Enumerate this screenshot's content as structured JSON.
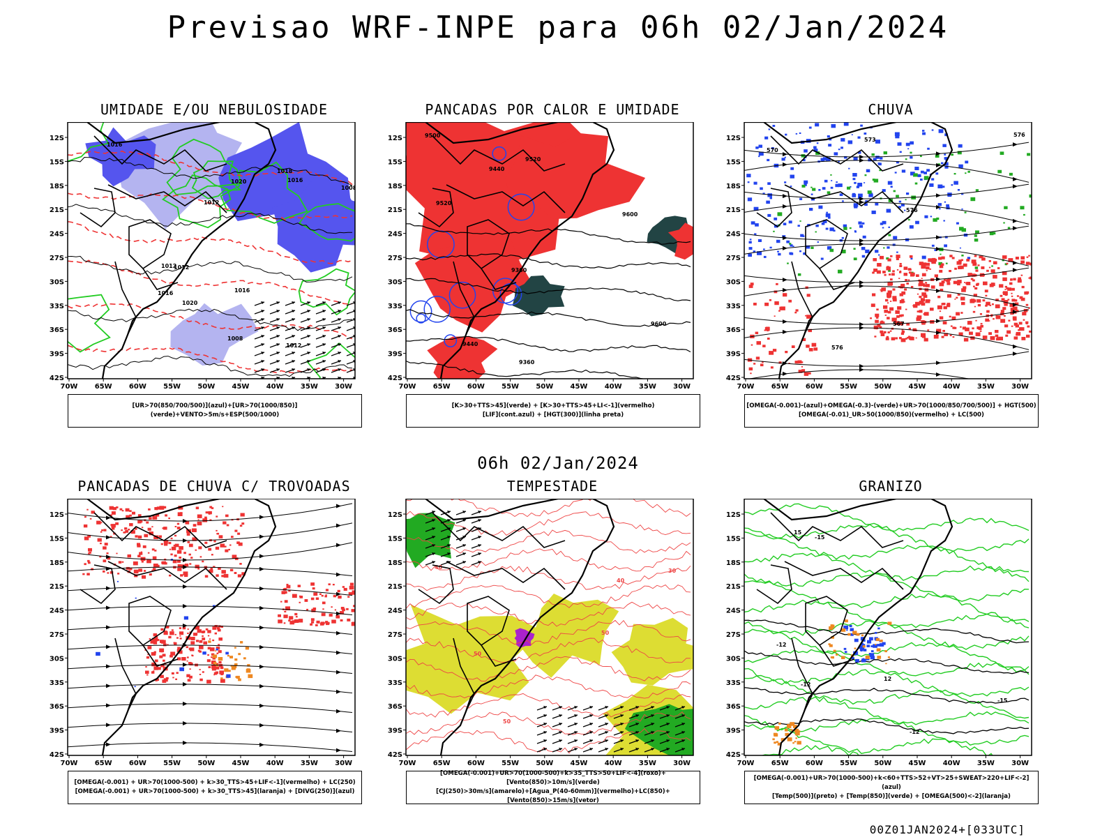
{
  "main_title": "Previsao WRF-INPE  para 06h 02/Jan/2024",
  "mid_title": "06h 02/Jan/2024",
  "footer": "00Z01JAN2024+[033UTC]",
  "lat_ticks": [
    "12S",
    "15S",
    "18S",
    "21S",
    "24S",
    "27S",
    "30S",
    "33S",
    "36S",
    "39S",
    "42S"
  ],
  "lon_ticks": [
    "70W",
    "65W",
    "60W",
    "55W",
    "50W",
    "45W",
    "40W",
    "35W",
    "30W"
  ],
  "panels": [
    {
      "title": "UMIDADE E/OU NEBULOSIDADE",
      "legend": [
        "[UR>70(850/700/500)](azul)+[UR>70(1000/850)](verde)+VENTO>5m/s+ESP(500/1000)"
      ],
      "labels": [
        "1012",
        "1008",
        "1016",
        "1012",
        "1020",
        "1016",
        "1012",
        "1008",
        "1016",
        "1012",
        "1020",
        "1018",
        "1016"
      ]
    },
    {
      "title": "PANCADAS POR CALOR E UMIDADE",
      "legend": [
        "[K>30+TTS>45](verde) + [K>30+TTS>45+LI<-1](vermelho)",
        "[LIF](cont.azul) + [HGT(300)](linha preta)"
      ],
      "labels": [
        "9600",
        "9600",
        "9520",
        "9440",
        "9360",
        "9500",
        "9520",
        "9440",
        "9360"
      ]
    },
    {
      "title": "CHUVA",
      "legend": [
        "[OMEGA(-0.001)-(azul)+OMEGA(-0.3)-(verde)+UR>70(1000/850/700/500)] + HGT(500)",
        "[OMEGA(-0.01)_UR>50(1000/850)(vermelho) + LC(500)"
      ],
      "labels": [
        "576",
        "576",
        "576",
        "567",
        "570",
        "573"
      ]
    },
    {
      "title": "PANCADAS DE CHUVA C/ TROVOADAS",
      "legend": [
        "[OMEGA(-0.001) + UR>70(1000-500) + k>30_TTS>45+LIF<-1](vermelho) + LC(250)",
        "[OMEGA(-0.001) + UR>70(1000-500) + k>30_TTS>45](laranja) + [DIVG(250)](azul)"
      ],
      "labels": []
    },
    {
      "title": "TEMPESTADE",
      "legend": [
        "[OMEGA(-0.001)+UR>70(1000-500)+k>35_TTS>50+LIF<-4](roxo)+[Vento(850)>10m/s](verde)",
        "[CJ(250)>30m/s](amarelo)+[Agua_P(40-60mm)](vermelho)+LC(850)+[Vento(850)>15m/s](vetor)"
      ],
      "labels": [
        "50",
        "40",
        "50",
        "40",
        "50",
        "30"
      ]
    },
    {
      "title": "GRANIZO",
      "legend": [
        "[OMEGA(-0.001)+UR>70(1000-500)+k<60+TTS>52+VT>25+SWEAT>220+LIF<-2](azul)",
        "[Temp(500)](preto) + [Temp(850)](verde) + [OMEGA(500)<-2](laranja)"
      ],
      "labels": [
        "-12",
        "-15",
        "-12",
        "-15",
        "-12",
        "12",
        "15"
      ]
    }
  ],
  "colors": {
    "blue_fill": "#5555ee",
    "light_blue_fill": "#b4b4f0",
    "green_line": "#22cc22",
    "red_fill": "#ee3333",
    "red_dashed": "#ee3333",
    "orange_fill": "#ee8822",
    "dark_teal_fill": "#224444",
    "yellow_fill": "#dddd33",
    "purple_fill": "#aa22cc"
  }
}
